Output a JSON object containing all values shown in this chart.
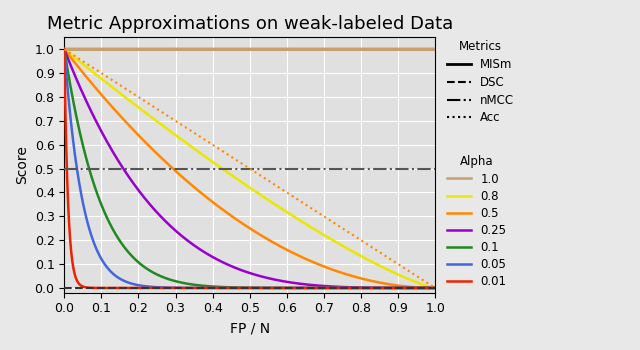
{
  "title": "Metric Approximations on weak-labeled Data",
  "xlabel": "FP / N",
  "ylabel": "Score",
  "xlim": [
    0,
    1
  ],
  "ylim": [
    -0.02,
    1.05
  ],
  "alphas": [
    1.0,
    0.8,
    0.5,
    0.25,
    0.1,
    0.05,
    0.01
  ],
  "alpha_colors": {
    "1.0": "#c8a070",
    "0.8": "#e8e800",
    "0.5": "#ff8800",
    "0.25": "#9900cc",
    "0.1": "#228822",
    "0.05": "#4466dd",
    "0.01": "#ee2200"
  },
  "MISm_color": "#8B4513",
  "DSC_color": "#000000",
  "nMCC_color": "#555555",
  "Acc_color": "#333333",
  "background_color": "#e0e0e0",
  "grid_color": "#ffffff",
  "title_fontsize": 13,
  "label_fontsize": 10,
  "tick_fontsize": 9,
  "legend_fontsize": 8.5
}
